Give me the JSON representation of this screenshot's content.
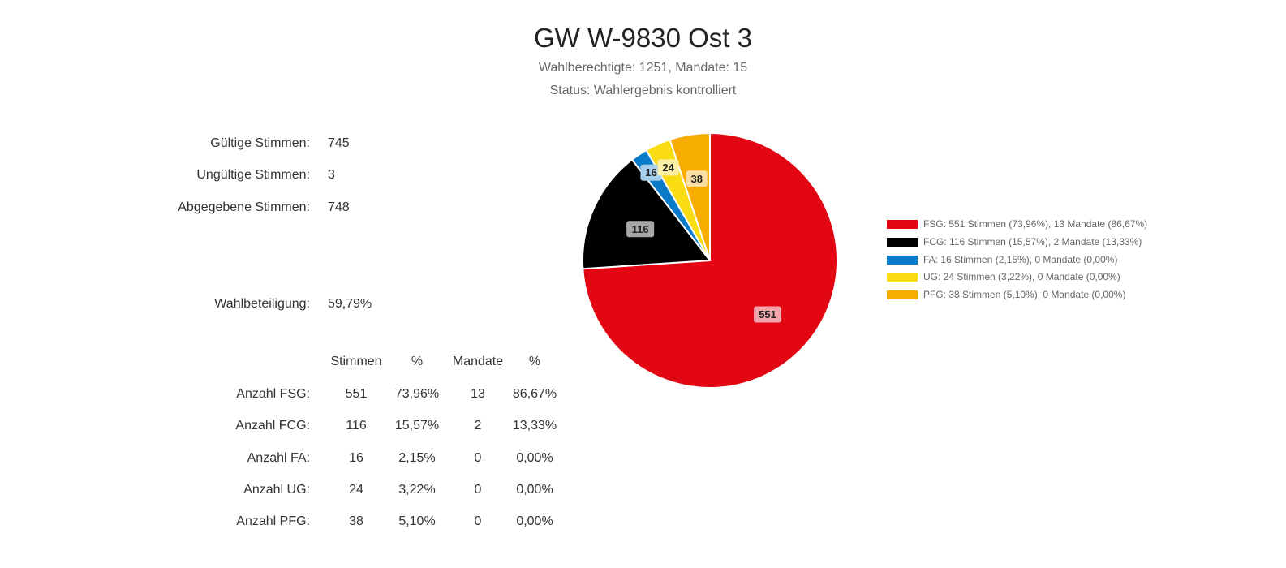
{
  "header": {
    "title": "GW W-9830 Ost 3",
    "subtitle1": "Wahlberechtigte: 1251, Mandate: 15",
    "subtitle2": "Status: Wahlergebnis kontrolliert"
  },
  "stats": {
    "valid_label": "Gültige Stimmen:",
    "valid_value": "745",
    "invalid_label": "Ungültige Stimmen:",
    "invalid_value": "3",
    "cast_label": "Abgegebene Stimmen:",
    "cast_value": "748",
    "turnout_label": "Wahlbeteiligung:",
    "turnout_value": "59,79%"
  },
  "table": {
    "headers": [
      "Stimmen",
      "%",
      "Mandate",
      "%"
    ],
    "rows": [
      {
        "label": "Anzahl FSG:",
        "votes": "551",
        "votes_pct": "73,96%",
        "seats": "13",
        "seats_pct": "86,67%"
      },
      {
        "label": "Anzahl FCG:",
        "votes": "116",
        "votes_pct": "15,57%",
        "seats": "2",
        "seats_pct": "13,33%"
      },
      {
        "label": "Anzahl FA:",
        "votes": "16",
        "votes_pct": "2,15%",
        "seats": "0",
        "seats_pct": "0,00%"
      },
      {
        "label": "Anzahl UG:",
        "votes": "24",
        "votes_pct": "3,22%",
        "seats": "0",
        "seats_pct": "0,00%"
      },
      {
        "label": "Anzahl PFG:",
        "votes": "38",
        "votes_pct": "5,10%",
        "seats": "0",
        "seats_pct": "0,00%"
      }
    ]
  },
  "chart_data": {
    "type": "pie",
    "categories": [
      "FSG",
      "FCG",
      "FA",
      "UG",
      "PFG"
    ],
    "values": [
      551,
      116,
      16,
      24,
      38
    ],
    "colors": [
      "#e30613",
      "#000000",
      "#0a7bc8",
      "#f9dc11",
      "#f7ad00"
    ],
    "label_backgrounds": [
      "#f0a6ab",
      "#a6a6a6",
      "#a8d0ec",
      "#fcf0a6",
      "#fbdea6"
    ],
    "legend": [
      "FSG: 551 Stimmen (73,96%), 13 Mandate (86,67%)",
      "FCG: 116 Stimmen (15,57%), 2 Mandate (13,33%)",
      "FA: 16 Stimmen (2,15%), 0 Mandate (0,00%)",
      "UG: 24 Stimmen (3,22%), 0 Mandate (0,00%)",
      "PFG: 38 Stimmen (5,10%), 0 Mandate (0,00%)"
    ],
    "legend_position": "right"
  }
}
